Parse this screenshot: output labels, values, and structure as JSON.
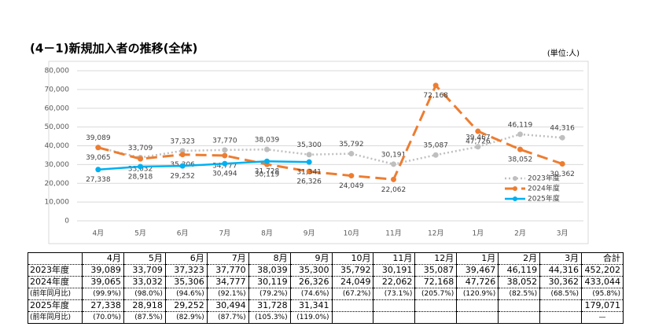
{
  "chart_data": {
    "type": "line",
    "title": "(4－1)新規加入者の推移(全体)",
    "unit": "(単位:人)",
    "categories": [
      "4月",
      "5月",
      "6月",
      "7月",
      "8月",
      "9月",
      "10月",
      "11月",
      "12月",
      "1月",
      "2月",
      "3月"
    ],
    "ylim": [
      0,
      80000
    ],
    "yticks": [
      0,
      {
        "value": 10000,
        "label": "10,000"
      },
      {
        "value": 20000,
        "label": "20,000"
      },
      {
        "value": 30000,
        "label": "30,000"
      },
      {
        "value": 40000,
        "label": "40,000"
      },
      {
        "value": 50000,
        "label": "50,000"
      },
      {
        "value": 60000,
        "label": "60,000"
      },
      {
        "value": 70000,
        "label": "70,000"
      },
      {
        "value": 80000,
        "label": "80,000"
      }
    ],
    "grid": true,
    "legend": "lower right",
    "series": [
      {
        "name": "2023年度",
        "color": "#bfbfbf",
        "line_style": "dotted",
        "values": [
          39089,
          33709,
          37323,
          37770,
          38039,
          35300,
          35792,
          30191,
          35087,
          39467,
          46119,
          44316
        ],
        "value_labels": [
          "39,089",
          "33,709",
          "37,323",
          "37,770",
          "38,039",
          "35,300",
          "35,792",
          "30,191",
          "35,087",
          "39,467",
          "46,119",
          "44,316"
        ]
      },
      {
        "name": "2024年度",
        "color": "#ed7d31",
        "line_style": "dashed",
        "values": [
          39065,
          33032,
          35306,
          34777,
          30119,
          26326,
          24049,
          22062,
          72168,
          47726,
          38052,
          30362
        ],
        "value_labels": [
          "39,065",
          "33,032",
          "35,306",
          "34,777",
          "30,119",
          "26,326",
          "24,049",
          "22,062",
          "72,168",
          "47,726",
          "38,052",
          "30,362"
        ]
      },
      {
        "name": "2025年度",
        "color": "#00b0f0",
        "line_style": "solid",
        "values": [
          27338,
          28918,
          29252,
          30494,
          31728,
          31341,
          null,
          null,
          null,
          null,
          null,
          null
        ],
        "value_labels": [
          "27,338",
          "28,918",
          "29,252",
          "30,494",
          "31,728",
          "31,341",
          null,
          null,
          null,
          null,
          null,
          null
        ]
      }
    ]
  },
  "table": {
    "rows": [
      [
        null,
        "4月",
        "5月",
        "6月",
        "7月",
        "8月",
        "9月",
        "10月",
        "11月",
        "12月",
        "1月",
        "2月",
        "3月",
        "合計"
      ],
      [
        "2023年度",
        "39,089",
        "33,709",
        "37,323",
        "37,770",
        "38,039",
        "35,300",
        "35,792",
        "30,191",
        "35,087",
        "39,467",
        "46,119",
        "44,316",
        "452,202"
      ],
      [
        "2024年度",
        "39,065",
        "33,032",
        "35,306",
        "34,777",
        "30,119",
        "26,326",
        "24,049",
        "22,062",
        "72,168",
        "47,726",
        "38,052",
        "30,362",
        "433,044"
      ],
      [
        "(前年同月比)",
        "(99.9%)",
        "(98.0%)",
        "(94.6%)",
        "(92.1%)",
        "(79.2%)",
        "(74.6%)",
        "(67.2%)",
        "(73.1%)",
        "(205.7%)",
        "(120.9%)",
        "(82.5%)",
        "(68.5%)",
        "(95.8%)"
      ],
      [
        "2025年度",
        "27,338",
        "28,918",
        "29,252",
        "30,494",
        "31,728",
        "31,341",
        null,
        null,
        null,
        null,
        null,
        null,
        "179,071"
      ],
      [
        "(前年同月比)",
        "(70.0%)",
        "(87.5%)",
        "(82.9%)",
        "(87.7%)",
        "(105.3%)",
        "(119.0%)",
        null,
        null,
        null,
        null,
        null,
        null,
        "—"
      ]
    ]
  }
}
